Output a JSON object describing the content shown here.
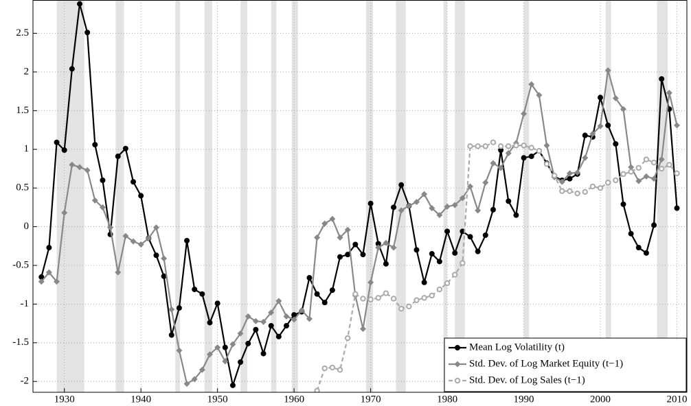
{
  "chart_data": {
    "type": "line",
    "x": [
      1927,
      1928,
      1929,
      1930,
      1931,
      1932,
      1933,
      1934,
      1935,
      1936,
      1937,
      1938,
      1939,
      1940,
      1941,
      1942,
      1943,
      1944,
      1945,
      1946,
      1947,
      1948,
      1949,
      1950,
      1951,
      1952,
      1953,
      1954,
      1955,
      1956,
      1957,
      1958,
      1959,
      1960,
      1961,
      1962,
      1963,
      1964,
      1965,
      1966,
      1967,
      1968,
      1969,
      1970,
      1971,
      1972,
      1973,
      1974,
      1975,
      1976,
      1977,
      1978,
      1979,
      1980,
      1981,
      1982,
      1983,
      1984,
      1985,
      1986,
      1987,
      1988,
      1989,
      1990,
      1991,
      1992,
      1993,
      1994,
      1995,
      1996,
      1997,
      1998,
      1999,
      2000,
      2001,
      2002,
      2003,
      2004,
      2005,
      2006,
      2007,
      2008,
      2009,
      2010
    ],
    "series": [
      {
        "name": "Mean Log Volatility (t)",
        "color": "#000000",
        "marker": "circle",
        "dashed": false,
        "values": [
          -0.65,
          -0.27,
          1.09,
          0.99,
          2.04,
          2.88,
          2.51,
          1.06,
          0.6,
          -0.1,
          0.91,
          1.01,
          0.58,
          0.4,
          -0.15,
          -0.37,
          -0.64,
          -1.4,
          -1.05,
          -0.18,
          -0.81,
          -0.87,
          -1.24,
          -0.99,
          -1.56,
          -2.05,
          -1.75,
          -1.51,
          -1.33,
          -1.64,
          -1.28,
          -1.42,
          -1.28,
          -1.14,
          -1.1,
          -0.66,
          -0.87,
          -0.98,
          -0.82,
          -0.39,
          -0.36,
          -0.23,
          -0.36,
          0.3,
          -0.22,
          -0.48,
          0.25,
          0.54,
          0.27,
          -0.3,
          -0.72,
          -0.35,
          -0.45,
          -0.06,
          -0.34,
          -0.06,
          -0.13,
          -0.32,
          -0.11,
          0.22,
          0.99,
          0.33,
          0.15,
          0.89,
          0.91,
          0.98,
          0.82,
          0.65,
          0.6,
          0.62,
          0.68,
          1.18,
          1.16,
          1.67,
          1.31,
          1.07,
          0.29,
          -0.09,
          -0.27,
          -0.34,
          0.02,
          1.91,
          1.52,
          0.24
        ]
      },
      {
        "name": "Std. Dev. of Log Market Equity (t−1)",
        "color": "#888888",
        "marker": "diamond",
        "dashed": false,
        "values": [
          -0.71,
          -0.59,
          -0.71,
          0.18,
          0.8,
          0.77,
          0.73,
          0.34,
          0.25,
          -0.01,
          -0.59,
          -0.12,
          -0.19,
          -0.23,
          -0.15,
          -0.01,
          -0.41,
          -1.07,
          -1.6,
          -2.03,
          -1.97,
          -1.85,
          -1.65,
          -1.56,
          -1.74,
          -1.52,
          -1.38,
          -1.16,
          -1.22,
          -1.23,
          -1.11,
          -0.96,
          -1.16,
          -1.2,
          -1.08,
          -1.19,
          -0.14,
          0.04,
          0.1,
          -0.14,
          -0.04,
          -0.89,
          -1.32,
          -0.72,
          -0.27,
          -0.21,
          -0.27,
          0.21,
          0.27,
          0.32,
          0.42,
          0.24,
          0.15,
          0.26,
          0.28,
          0.37,
          0.52,
          0.21,
          0.57,
          0.82,
          0.76,
          0.95,
          1.08,
          1.46,
          1.84,
          1.7,
          1.05,
          0.64,
          0.58,
          0.69,
          0.7,
          0.89,
          1.2,
          1.3,
          2.02,
          1.66,
          1.52,
          0.77,
          0.59,
          0.65,
          0.62,
          0.87,
          1.73,
          1.31
        ]
      },
      {
        "name": "Std. Dev. of Log Sales (t−1)",
        "color": "#aaaaaa",
        "marker": "open-circle",
        "dashed": true,
        "values": [
          null,
          null,
          null,
          null,
          null,
          null,
          null,
          null,
          null,
          null,
          null,
          null,
          null,
          null,
          null,
          null,
          null,
          null,
          null,
          null,
          null,
          null,
          null,
          null,
          null,
          null,
          null,
          null,
          null,
          null,
          null,
          null,
          null,
          null,
          null,
          null,
          -2.12,
          -1.83,
          -1.82,
          -1.85,
          -1.44,
          -0.87,
          -0.93,
          -0.94,
          -0.92,
          -0.86,
          -0.93,
          -1.06,
          -1.03,
          -0.95,
          -0.92,
          -0.89,
          -0.81,
          -0.73,
          -0.62,
          -0.47,
          1.04,
          1.04,
          1.04,
          1.09,
          1.04,
          1.04,
          1.05,
          1.05,
          1.02,
          0.98,
          0.81,
          0.66,
          0.46,
          0.46,
          0.43,
          0.45,
          0.52,
          0.5,
          0.57,
          0.6,
          0.68,
          0.71,
          0.76,
          0.87,
          0.83,
          0.75,
          0.8,
          0.69
        ]
      }
    ],
    "shaded_regions": [
      [
        1929.0,
        1932.6
      ],
      [
        1936.7,
        1937.8
      ],
      [
        1944.5,
        1945.1
      ],
      [
        1948.3,
        1949.3
      ],
      [
        1953.0,
        1953.9
      ],
      [
        1957.0,
        1957.7
      ],
      [
        1959.7,
        1960.5
      ],
      [
        1969.4,
        1970.3
      ],
      [
        1973.3,
        1974.6
      ],
      [
        1979.5,
        1980.0
      ],
      [
        1981.0,
        1982.3
      ],
      [
        1990.0,
        1990.7
      ],
      [
        2000.7,
        2001.4
      ],
      [
        2007.4,
        2008.8
      ]
    ],
    "xlim": [
      1925.9,
      2011.3
    ],
    "xticks": [
      1930,
      1940,
      1950,
      1960,
      1970,
      1980,
      1990,
      2000,
      2010
    ],
    "ylim": [
      -2.14,
      2.93
    ],
    "yticks": [
      -2,
      -1.5,
      -1,
      -0.5,
      0,
      0.5,
      1,
      1.5,
      2,
      2.5
    ],
    "grid": true,
    "legend": "lower right"
  }
}
